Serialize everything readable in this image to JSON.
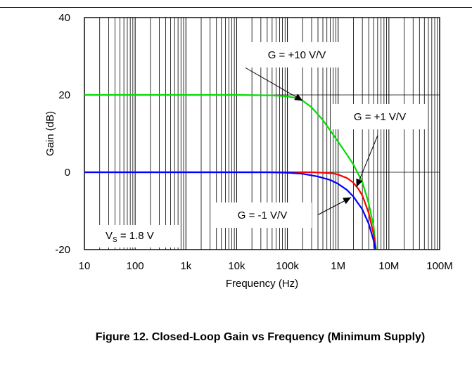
{
  "chart_data": {
    "type": "line",
    "xscale": "log",
    "xlim": [
      10,
      100000000
    ],
    "ylim": [
      -20,
      40
    ],
    "grid": true,
    "xlabel": "Frequency (Hz)",
    "ylabel": "Gain (dB)",
    "x_ticks": [
      {
        "value": 10,
        "label": "10"
      },
      {
        "value": 100,
        "label": "100"
      },
      {
        "value": 1000,
        "label": "1k"
      },
      {
        "value": 10000,
        "label": "10k"
      },
      {
        "value": 100000,
        "label": "100k"
      },
      {
        "value": 1000000,
        "label": "1M"
      },
      {
        "value": 10000000,
        "label": "10M"
      },
      {
        "value": 100000000,
        "label": "100M"
      }
    ],
    "y_ticks": [
      {
        "value": 40,
        "label": "40"
      },
      {
        "value": 20,
        "label": "20"
      },
      {
        "value": 0,
        "label": "0"
      },
      {
        "value": -20,
        "label": "-20"
      }
    ],
    "series": [
      {
        "name": "G = +10 V/V",
        "color": "#00dd00",
        "x": [
          10,
          10000,
          50000,
          100000,
          150000,
          200000,
          300000,
          500000,
          700000,
          1000000,
          1500000,
          2000000,
          3000000,
          4000000,
          5000000,
          5600000
        ],
        "y": [
          20,
          20,
          19.9,
          19.6,
          19.2,
          18.5,
          16.8,
          13.5,
          10.8,
          7.9,
          4.5,
          2,
          -2.5,
          -8,
          -14,
          -20
        ]
      },
      {
        "name": "G = +1 V/V",
        "color": "#ff0000",
        "x": [
          10,
          100000,
          300000,
          500000,
          800000,
          1000000,
          1500000,
          2000000,
          2500000,
          3000000,
          4000000,
          5000000,
          5500000
        ],
        "y": [
          0,
          0,
          0,
          -0.1,
          -0.3,
          -0.6,
          -1.5,
          -2.7,
          -4.3,
          -6,
          -10.5,
          -16,
          -20
        ]
      },
      {
        "name": "G = -1 V/V",
        "color": "#0000ff",
        "x": [
          10,
          40000,
          100000,
          200000,
          400000,
          700000,
          1000000,
          1500000,
          2000000,
          3000000,
          4000000,
          5000000,
          5400000
        ],
        "y": [
          0,
          0,
          -0.1,
          -0.4,
          -1.1,
          -2,
          -3,
          -4.6,
          -6.3,
          -9.6,
          -13.3,
          -17.6,
          -20
        ]
      }
    ],
    "annotations": [
      {
        "label": "G = +10 V/V",
        "target_x": 200000,
        "target_y": 18.5,
        "anchor_x": 15000,
        "anchor_y": 27
      },
      {
        "label": "G = +1 V/V",
        "target_x": 2300000,
        "target_y": -3.8,
        "anchor_x": 6000000,
        "anchor_y": 9.5
      },
      {
        "label": "G = -1 V/V",
        "target_x": 1800000,
        "target_y": -6.5,
        "anchor_x": 400000,
        "anchor_y": -11
      }
    ],
    "legend_note": {
      "prefix": "V",
      "subscript": "S",
      "suffix": " = 1.8 V"
    },
    "caption": "Figure 12. Closed-Loop Gain vs Frequency (Minimum Supply)"
  }
}
